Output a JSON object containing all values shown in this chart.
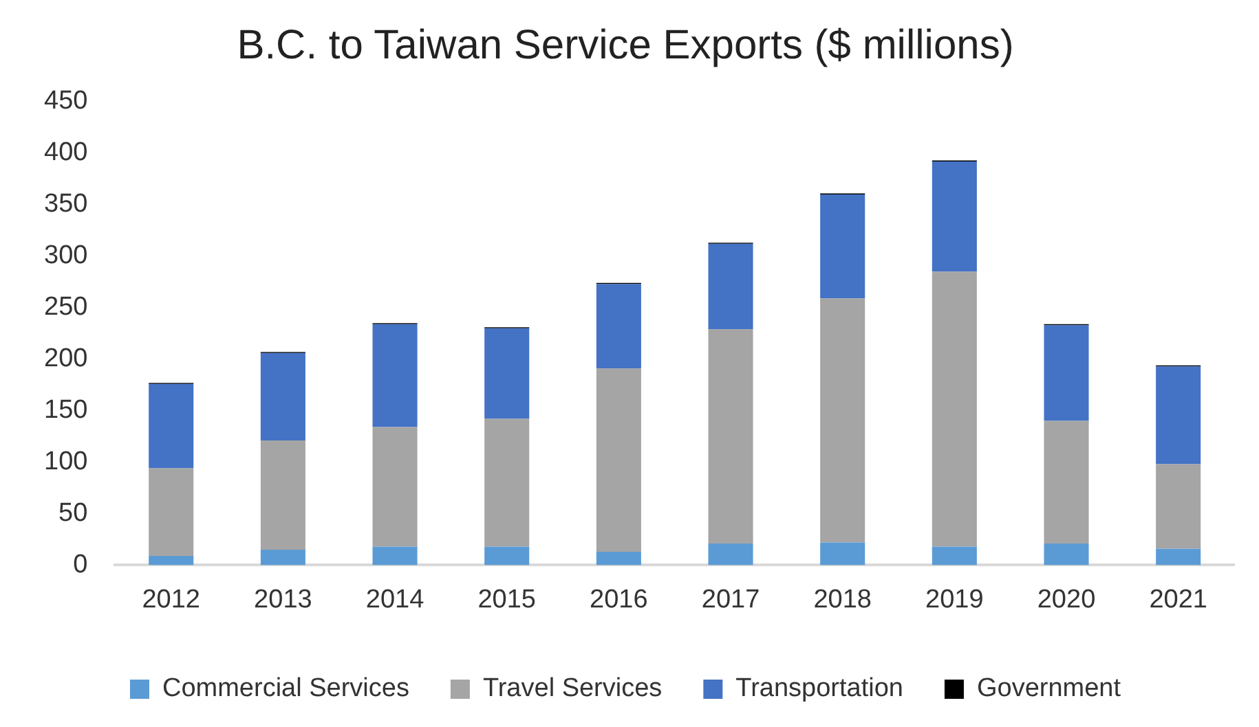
{
  "chart_data": {
    "type": "bar",
    "title": "B.C. to Taiwan Service Exports ($ millions)",
    "categories": [
      "2012",
      "2013",
      "2014",
      "2015",
      "2016",
      "2017",
      "2018",
      "2019",
      "2020",
      "2021"
    ],
    "series": [
      {
        "name": "Commercial Services",
        "color": "#5b9bd5",
        "values": [
          9,
          15,
          18,
          18,
          13,
          21,
          22,
          18,
          21,
          16
        ]
      },
      {
        "name": "Travel Services",
        "color": "#a5a5a5",
        "values": [
          85,
          106,
          116,
          124,
          178,
          208,
          237,
          267,
          119,
          82
        ]
      },
      {
        "name": "Transportation",
        "color": "#4472c4",
        "values": [
          82,
          85,
          100,
          88,
          82,
          83,
          101,
          107,
          93,
          95
        ]
      },
      {
        "name": "Government",
        "color": "#000000",
        "values": [
          1,
          1,
          1,
          1,
          1,
          1,
          1,
          1,
          1,
          1
        ]
      }
    ],
    "stacked": true,
    "ylim": [
      0,
      450
    ],
    "yticks": [
      0,
      50,
      100,
      150,
      200,
      250,
      300,
      350,
      400,
      450
    ],
    "grid": false,
    "legend": "bottom"
  }
}
